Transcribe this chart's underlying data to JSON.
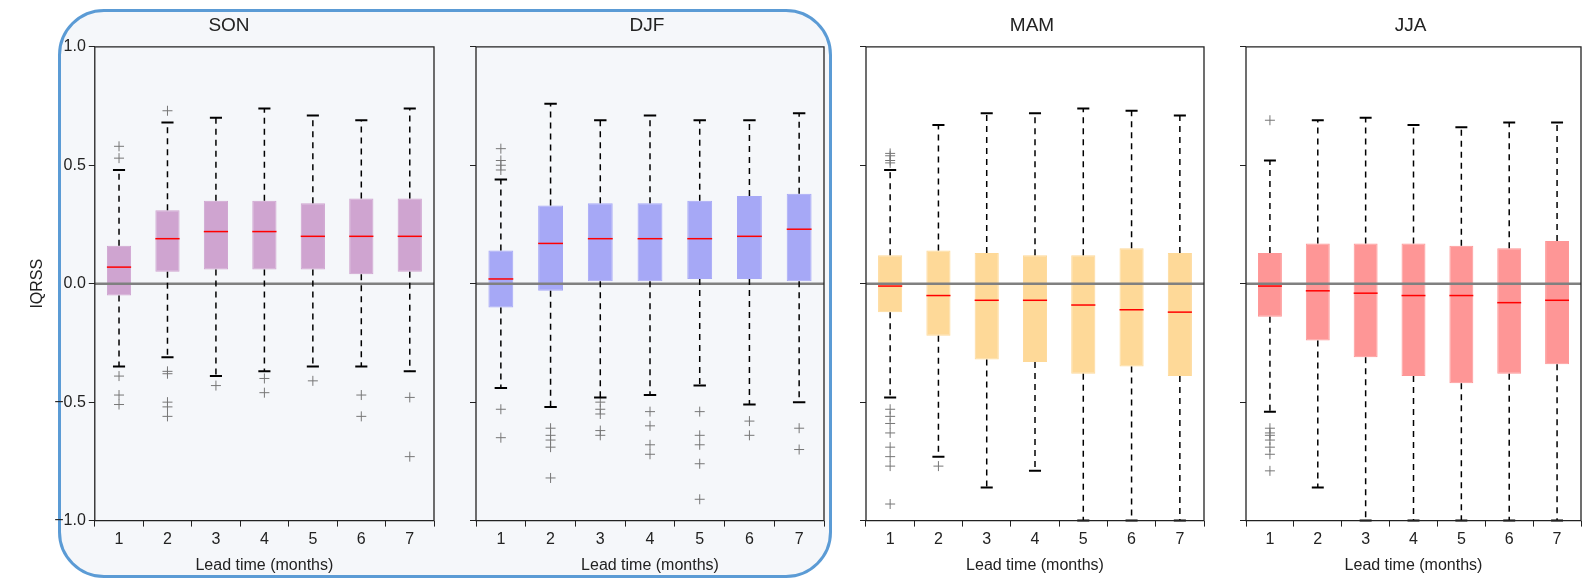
{
  "chart_data": [
    {
      "type": "box",
      "title": "SON",
      "xlabel": "Lead time (months)",
      "ylabel": "IQRSS",
      "categories": [
        "1",
        "2",
        "3",
        "4",
        "5",
        "6",
        "7"
      ],
      "color": "#cfa4d0",
      "marker": "cross",
      "ylim": [
        -1,
        1
      ],
      "yticks": [
        {
          "value": -1,
          "label": "−1.0"
        },
        {
          "value": -0.5,
          "label": "−0.5"
        },
        {
          "value": 0,
          "label": "0.0"
        },
        {
          "value": 0.5,
          "label": "0.5"
        },
        {
          "value": 1,
          "label": "1.0"
        }
      ],
      "ref_lines": [
        {
          "axis": "y",
          "value": 0,
          "color": "#808080"
        }
      ],
      "boxes": [
        {
          "low": -0.35,
          "q1": -0.05,
          "median": 0.07,
          "q3": 0.16,
          "high": 0.48,
          "outliers": [
            0.58,
            0.53,
            -0.39,
            -0.47,
            -0.51
          ]
        },
        {
          "low": -0.31,
          "q1": 0.05,
          "median": 0.19,
          "q3": 0.31,
          "high": 0.68,
          "outliers": [
            0.73,
            -0.37,
            -0.38,
            -0.5,
            -0.52,
            -0.56
          ]
        },
        {
          "low": -0.39,
          "q1": 0.06,
          "median": 0.22,
          "q3": 0.35,
          "high": 0.7,
          "outliers": [
            -0.43
          ]
        },
        {
          "low": -0.37,
          "q1": 0.06,
          "median": 0.22,
          "q3": 0.35,
          "high": 0.74,
          "outliers": [
            -0.4,
            -0.46
          ]
        },
        {
          "low": -0.35,
          "q1": 0.06,
          "median": 0.2,
          "q3": 0.34,
          "high": 0.71,
          "outliers": [
            -0.41
          ]
        },
        {
          "low": -0.35,
          "q1": 0.04,
          "median": 0.2,
          "q3": 0.36,
          "high": 0.69,
          "outliers": [
            -0.47,
            -0.56
          ]
        },
        {
          "low": -0.37,
          "q1": 0.05,
          "median": 0.2,
          "q3": 0.36,
          "high": 0.74,
          "outliers": [
            -0.48,
            -0.73
          ]
        }
      ]
    },
    {
      "type": "box",
      "title": "DJF",
      "xlabel": "Lead time (months)",
      "categories": [
        "1",
        "2",
        "3",
        "4",
        "5",
        "6",
        "7"
      ],
      "color": "#a6a8f6",
      "marker": "cross",
      "tick_labels": "x",
      "ylim": [
        -1,
        1
      ],
      "yticks": [
        -1,
        -0.5,
        0,
        0.5,
        1
      ],
      "ref_lines": [
        {
          "axis": "y",
          "value": 0,
          "color": "#808080"
        }
      ],
      "boxes": [
        {
          "low": -0.44,
          "q1": -0.1,
          "median": 0.02,
          "q3": 0.14,
          "high": 0.44,
          "outliers": [
            0.57,
            0.52,
            0.5,
            0.48,
            -0.53,
            -0.65
          ]
        },
        {
          "low": -0.52,
          "q1": -0.03,
          "median": 0.17,
          "q3": 0.33,
          "high": 0.76,
          "outliers": [
            -0.61,
            -0.64,
            -0.66,
            -0.69,
            -0.82
          ]
        },
        {
          "low": -0.48,
          "q1": 0.01,
          "median": 0.19,
          "q3": 0.34,
          "high": 0.69,
          "outliers": [
            -0.5,
            -0.53,
            -0.55,
            -0.62,
            -0.64
          ]
        },
        {
          "low": -0.47,
          "q1": 0.01,
          "median": 0.19,
          "q3": 0.34,
          "high": 0.71,
          "outliers": [
            -0.54,
            -0.6,
            -0.68,
            -0.72
          ]
        },
        {
          "low": -0.43,
          "q1": 0.02,
          "median": 0.19,
          "q3": 0.35,
          "high": 0.69,
          "outliers": [
            -0.54,
            -0.64,
            -0.68,
            -0.76,
            -0.91
          ]
        },
        {
          "low": -0.51,
          "q1": 0.02,
          "median": 0.2,
          "q3": 0.37,
          "high": 0.69,
          "outliers": [
            -0.58,
            -0.64
          ]
        },
        {
          "low": -0.5,
          "q1": 0.01,
          "median": 0.23,
          "q3": 0.38,
          "high": 0.72,
          "outliers": [
            -0.61,
            -0.7
          ]
        }
      ]
    },
    {
      "type": "box",
      "title": "MAM",
      "xlabel": "Lead time (months)",
      "categories": [
        "1",
        "2",
        "3",
        "4",
        "5",
        "6",
        "7"
      ],
      "color": "#fed998",
      "marker": "cross",
      "tick_labels": "x",
      "ylim": [
        -1,
        1
      ],
      "yticks": [
        -1,
        -0.5,
        0,
        0.5,
        1
      ],
      "ref_lines": [
        {
          "axis": "y",
          "value": 0,
          "color": "#808080"
        }
      ],
      "boxes": [
        {
          "low": -0.48,
          "q1": -0.12,
          "median": -0.01,
          "q3": 0.12,
          "high": 0.48,
          "outliers": [
            0.55,
            0.54,
            0.52,
            0.51,
            -0.53,
            -0.56,
            -0.59,
            -0.63,
            -0.69,
            -0.73,
            -0.77,
            -0.93
          ]
        },
        {
          "low": -0.73,
          "q1": -0.22,
          "median": -0.05,
          "q3": 0.14,
          "high": 0.67,
          "outliers": [
            -0.77
          ]
        },
        {
          "low": -0.86,
          "q1": -0.32,
          "median": -0.07,
          "q3": 0.13,
          "high": 0.72
        },
        {
          "low": -0.79,
          "q1": -0.33,
          "median": -0.07,
          "q3": 0.12,
          "high": 0.72
        },
        {
          "low": -1,
          "q1": -0.38,
          "median": -0.09,
          "q3": 0.12,
          "high": 0.74
        },
        {
          "low": -1,
          "q1": -0.35,
          "median": -0.11,
          "q3": 0.15,
          "high": 0.73
        },
        {
          "low": -1,
          "q1": -0.39,
          "median": -0.12,
          "q3": 0.13,
          "high": 0.71
        }
      ]
    },
    {
      "type": "box",
      "title": "JJA",
      "xlabel": "Lead time (months)",
      "categories": [
        "1",
        "2",
        "3",
        "4",
        "5",
        "6",
        "7"
      ],
      "color": "#fe9696",
      "marker": "cross",
      "tick_labels": "x",
      "ylim": [
        -1,
        1
      ],
      "yticks": [
        -1,
        -0.5,
        0,
        0.5,
        1
      ],
      "ref_lines": [
        {
          "axis": "y",
          "value": 0,
          "color": "#808080"
        }
      ],
      "boxes": [
        {
          "low": -0.54,
          "q1": -0.14,
          "median": -0.01,
          "q3": 0.13,
          "high": 0.52,
          "outliers": [
            0.69,
            -0.61,
            -0.63,
            -0.64,
            -0.66,
            -0.69,
            -0.72,
            -0.79
          ]
        },
        {
          "low": -0.86,
          "q1": -0.24,
          "median": -0.03,
          "q3": 0.17,
          "high": 0.69
        },
        {
          "low": -1,
          "q1": -0.31,
          "median": -0.04,
          "q3": 0.17,
          "high": 0.7
        },
        {
          "low": -1,
          "q1": -0.39,
          "median": -0.05,
          "q3": 0.17,
          "high": 0.67
        },
        {
          "low": -1,
          "q1": -0.42,
          "median": -0.05,
          "q3": 0.16,
          "high": 0.66
        },
        {
          "low": -1,
          "q1": -0.38,
          "median": -0.08,
          "q3": 0.15,
          "high": 0.68
        },
        {
          "low": -1,
          "q1": -0.34,
          "median": -0.07,
          "q3": 0.18,
          "high": 0.68
        }
      ]
    }
  ]
}
